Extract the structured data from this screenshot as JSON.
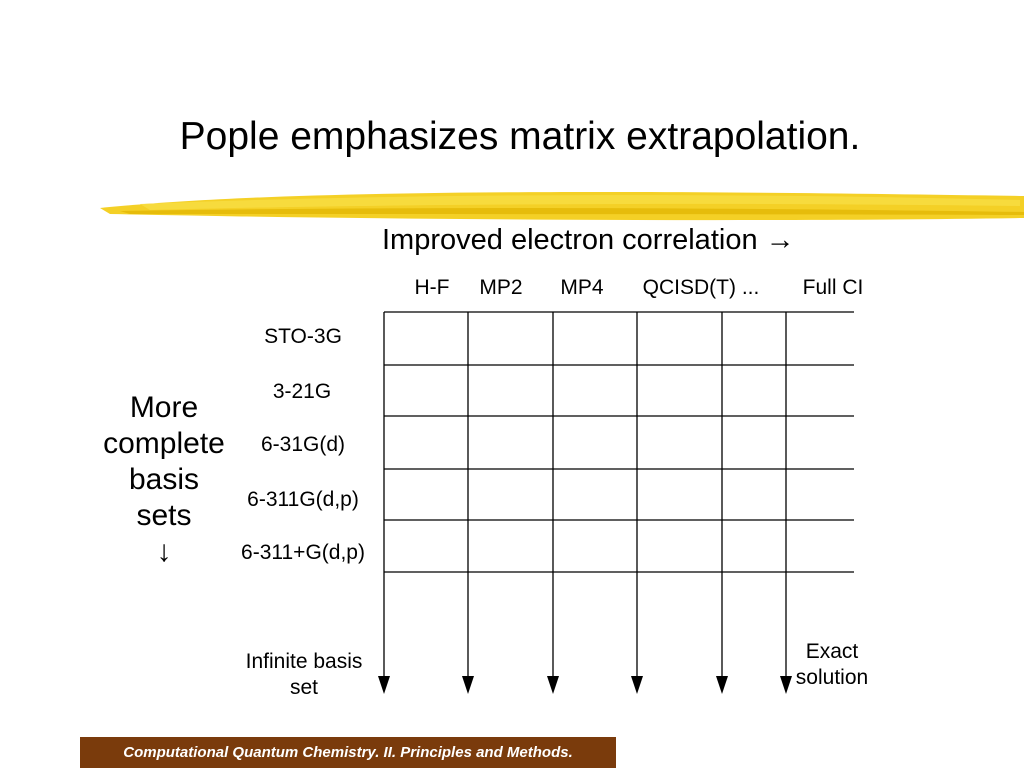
{
  "slide": {
    "title": "Pople emphasizes matrix extrapolation.",
    "top_axis_label": "Improved electron correlation →",
    "left_axis_label": [
      "More",
      "complete",
      "basis",
      "sets",
      "↓"
    ],
    "methods": [
      "H-F",
      "MP2",
      "MP4",
      "QCISD(T) ...",
      "Full CI"
    ],
    "basis_sets": [
      "STO-3G",
      "3-21G",
      "6-31G(d)",
      "6-311G(d,p)",
      "6-311+G(d,p)"
    ],
    "bottom_left_label": [
      "Infinite basis",
      "set"
    ],
    "bottom_right_label": [
      "Exact",
      "solution"
    ],
    "footer": "Computational Quantum Chemistry.  II. Principles and Methods.",
    "colors": {
      "highlight": "#f2c800",
      "footer_background": "#7a3b0c",
      "footer_text": "#ffffff"
    }
  }
}
